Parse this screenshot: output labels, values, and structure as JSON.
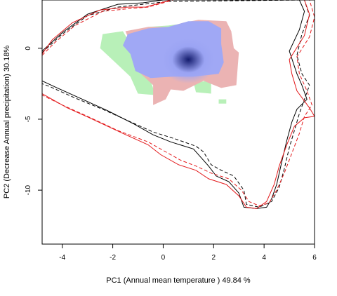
{
  "chart_data": {
    "type": "scatter",
    "title": "",
    "xlabel": "PC1 (Annual mean temperature ) 49.84 %",
    "ylabel": "PC2 (Decrease Annual precipitation) 30.18%",
    "xlim": [
      -4.8,
      6.0
    ],
    "ylim": [
      -13.8,
      3.4
    ],
    "xticks": [
      -4,
      -2,
      0,
      2,
      4,
      6
    ],
    "yticks": [
      0,
      -5,
      -10
    ],
    "grid": false,
    "legend": "none",
    "colors": {
      "density_peak": "#141c6e",
      "density_mid": "#9aa3f3",
      "overlap_blue": "#a0a8f5",
      "native_only": "#ebb3b3",
      "invaded_only": "#b8f0b8",
      "contour_solid_black": "#000000",
      "contour_dashed_black": "#000000",
      "contour_solid_red": "#e31a1c",
      "contour_dashed_red": "#e31a1c"
    },
    "density_peak": {
      "x": 1.0,
      "y": -0.8
    },
    "regions": [
      {
        "name": "invaded_only",
        "color": "#b8f0b8",
        "points": [
          [
            -2.4,
            1.0
          ],
          [
            -1.6,
            1.2
          ],
          [
            -1.3,
            0.3
          ],
          [
            -1.2,
            -0.8
          ],
          [
            -0.6,
            -1.8
          ],
          [
            -0.3,
            -3.3
          ],
          [
            -1.0,
            -3.2
          ],
          [
            -1.3,
            -2.0
          ],
          [
            -1.9,
            -1.0
          ],
          [
            -2.5,
            0.0
          ]
        ]
      },
      {
        "name": "invaded_only",
        "color": "#b8f0b8",
        "points": [
          [
            -0.6,
            1.5
          ],
          [
            0.2,
            1.6
          ],
          [
            1.5,
            1.9
          ],
          [
            2.0,
            1.2
          ],
          [
            1.2,
            0.6
          ],
          [
            -0.1,
            0.9
          ]
        ]
      },
      {
        "name": "invaded_only",
        "color": "#b8f0b8",
        "points": [
          [
            1.2,
            -2.4
          ],
          [
            1.9,
            -2.3
          ],
          [
            1.9,
            -3.2
          ],
          [
            1.3,
            -3.1
          ]
        ]
      },
      {
        "name": "invaded_only",
        "color": "#b8f0b8",
        "points": [
          [
            2.2,
            -3.6
          ],
          [
            2.5,
            -3.6
          ],
          [
            2.5,
            -3.9
          ],
          [
            2.2,
            -3.9
          ]
        ]
      },
      {
        "name": "native_only",
        "color": "#ebb3b3",
        "points": [
          [
            -1.5,
            1.2
          ],
          [
            -0.6,
            1.5
          ],
          [
            0.2,
            1.5
          ],
          [
            0.8,
            1.8
          ],
          [
            1.4,
            2.0
          ],
          [
            2.5,
            1.9
          ],
          [
            2.7,
            1.2
          ],
          [
            2.8,
            0.0
          ],
          [
            3.0,
            -0.3
          ],
          [
            2.9,
            -2.6
          ],
          [
            2.3,
            -2.8
          ],
          [
            1.6,
            -2.3
          ],
          [
            0.8,
            -3.0
          ],
          [
            0.3,
            -2.9
          ],
          [
            0.1,
            -3.6
          ],
          [
            -0.4,
            -4.0
          ],
          [
            -0.4,
            -2.6
          ],
          [
            -1.0,
            -1.6
          ],
          [
            -1.2,
            -0.5
          ],
          [
            -1.3,
            0.4
          ]
        ]
      },
      {
        "name": "overlap_blue",
        "color": "#a0a8f5",
        "points": [
          [
            -1.4,
            1.0
          ],
          [
            -0.6,
            1.4
          ],
          [
            0.2,
            1.5
          ],
          [
            1.0,
            1.9
          ],
          [
            1.8,
            1.9
          ],
          [
            2.3,
            1.4
          ],
          [
            2.3,
            0.3
          ],
          [
            2.4,
            -1.0
          ],
          [
            2.2,
            -1.8
          ],
          [
            1.2,
            -2.0
          ],
          [
            0.4,
            -2.0
          ],
          [
            -0.5,
            -2.1
          ],
          [
            -1.1,
            -1.6
          ],
          [
            -1.3,
            -0.4
          ],
          [
            -1.6,
            0.2
          ]
        ]
      }
    ],
    "series": [
      {
        "style": "solid",
        "color": "#000000",
        "points": [
          [
            -4.8,
            -0.2
          ],
          [
            -4.0,
            1.1
          ],
          [
            -3.0,
            2.4
          ],
          [
            -1.8,
            3.1
          ],
          [
            -0.8,
            3.2
          ],
          [
            0.0,
            3.4
          ],
          [
            5.4,
            3.4
          ],
          [
            5.6,
            2.6
          ],
          [
            5.4,
            1.3
          ],
          [
            5.0,
            -0.2
          ],
          [
            5.3,
            -1.8
          ],
          [
            5.5,
            -2.6
          ],
          [
            5.7,
            -3.6
          ],
          [
            5.3,
            -4.3
          ],
          [
            5.1,
            -5.2
          ],
          [
            4.9,
            -6.5
          ],
          [
            4.7,
            -8.0
          ],
          [
            4.5,
            -9.6
          ],
          [
            4.3,
            -10.6
          ],
          [
            4.1,
            -11.2
          ],
          [
            3.7,
            -11.3
          ],
          [
            3.2,
            -11.2
          ],
          [
            3.0,
            -10.2
          ],
          [
            2.6,
            -9.4
          ],
          [
            2.1,
            -9.0
          ],
          [
            1.8,
            -8.3
          ],
          [
            1.5,
            -7.7
          ],
          [
            1.2,
            -7.1
          ],
          [
            0.3,
            -6.6
          ],
          [
            -0.4,
            -6.1
          ],
          [
            -1.2,
            -5.3
          ],
          [
            -2.2,
            -4.4
          ],
          [
            -3.2,
            -3.6
          ],
          [
            -4.2,
            -2.8
          ],
          [
            -4.8,
            -2.3
          ]
        ]
      },
      {
        "style": "dashed",
        "color": "#000000",
        "points": [
          [
            -4.8,
            -0.3
          ],
          [
            -4.0,
            1.0
          ],
          [
            -3.0,
            2.3
          ],
          [
            -1.8,
            2.9
          ],
          [
            -0.8,
            3.1
          ],
          [
            0.2,
            3.3
          ],
          [
            5.6,
            3.4
          ],
          [
            5.8,
            2.3
          ],
          [
            5.5,
            1.0
          ],
          [
            5.3,
            -0.5
          ],
          [
            5.5,
            -1.8
          ],
          [
            5.8,
            -2.6
          ],
          [
            5.6,
            -3.6
          ],
          [
            5.4,
            -4.6
          ],
          [
            5.2,
            -5.8
          ],
          [
            5.0,
            -7.0
          ],
          [
            4.8,
            -8.5
          ],
          [
            4.6,
            -9.8
          ],
          [
            4.3,
            -10.8
          ],
          [
            3.8,
            -11.2
          ],
          [
            3.3,
            -11.0
          ],
          [
            3.2,
            -10.0
          ],
          [
            2.8,
            -9.0
          ],
          [
            2.3,
            -8.6
          ],
          [
            1.9,
            -8.2
          ],
          [
            1.6,
            -7.3
          ],
          [
            1.3,
            -6.9
          ],
          [
            0.5,
            -6.4
          ],
          [
            -0.4,
            -5.9
          ],
          [
            -1.4,
            -5.1
          ],
          [
            -2.4,
            -4.3
          ],
          [
            -3.5,
            -3.5
          ],
          [
            -4.5,
            -2.7
          ],
          [
            -4.8,
            -2.5
          ]
        ]
      },
      {
        "style": "solid",
        "color": "#e31a1c",
        "points": [
          [
            -4.8,
            -0.4
          ],
          [
            -4.4,
            0.6
          ],
          [
            -3.6,
            1.8
          ],
          [
            -2.5,
            2.7
          ],
          [
            -1.4,
            2.9
          ],
          [
            -0.7,
            2.9
          ],
          [
            0.3,
            3.4
          ],
          [
            5.6,
            3.4
          ],
          [
            5.8,
            2.4
          ],
          [
            5.6,
            0.9
          ],
          [
            5.0,
            -0.8
          ],
          [
            5.1,
            -1.8
          ],
          [
            5.3,
            -3.0
          ],
          [
            5.8,
            -4.2
          ],
          [
            6.0,
            -4.8
          ],
          [
            5.6,
            -4.9
          ],
          [
            5.2,
            -5.5
          ],
          [
            4.9,
            -6.8
          ],
          [
            4.6,
            -8.3
          ],
          [
            4.4,
            -9.6
          ],
          [
            4.1,
            -10.8
          ],
          [
            3.7,
            -11.3
          ],
          [
            3.3,
            -11.2
          ],
          [
            3.0,
            -10.4
          ],
          [
            2.5,
            -9.6
          ],
          [
            1.8,
            -9.2
          ],
          [
            1.3,
            -8.6
          ],
          [
            0.6,
            -8.2
          ],
          [
            -0.1,
            -7.5
          ],
          [
            -0.6,
            -6.8
          ],
          [
            -1.6,
            -6.0
          ],
          [
            -2.8,
            -5.0
          ],
          [
            -3.8,
            -4.2
          ],
          [
            -4.8,
            -3.2
          ]
        ]
      },
      {
        "style": "dashed",
        "color": "#e31a1c",
        "points": [
          [
            -4.8,
            -0.5
          ],
          [
            -4.3,
            0.4
          ],
          [
            -3.5,
            1.6
          ],
          [
            -2.4,
            2.6
          ],
          [
            -1.3,
            2.8
          ],
          [
            -0.6,
            2.9
          ],
          [
            0.4,
            3.4
          ],
          [
            5.8,
            3.4
          ],
          [
            6.0,
            2.2
          ],
          [
            5.8,
            0.8
          ],
          [
            5.3,
            -0.6
          ],
          [
            5.4,
            -1.8
          ],
          [
            5.7,
            -3.0
          ],
          [
            5.9,
            -4.0
          ],
          [
            5.6,
            -4.8
          ],
          [
            5.4,
            -6.0
          ],
          [
            5.1,
            -7.4
          ],
          [
            4.8,
            -8.8
          ],
          [
            4.5,
            -10.0
          ],
          [
            4.2,
            -10.9
          ],
          [
            3.8,
            -11.1
          ],
          [
            3.4,
            -10.8
          ],
          [
            3.1,
            -10.0
          ],
          [
            2.6,
            -9.2
          ],
          [
            1.9,
            -8.8
          ],
          [
            1.3,
            -8.3
          ],
          [
            0.7,
            -7.9
          ],
          [
            0.1,
            -7.3
          ],
          [
            -0.6,
            -6.6
          ],
          [
            -1.8,
            -5.8
          ],
          [
            -3.0,
            -4.8
          ],
          [
            -4.0,
            -4.0
          ],
          [
            -4.8,
            -3.3
          ]
        ]
      }
    ]
  }
}
